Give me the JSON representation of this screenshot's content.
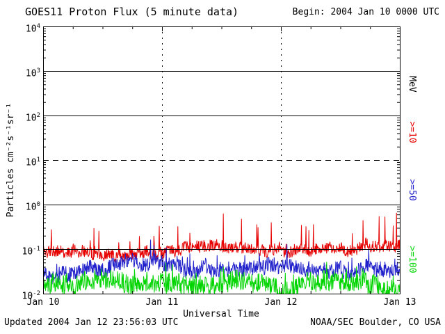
{
  "header": {
    "title": "GOES11 Proton Flux (5 minute data)",
    "begin_label": "Begin: 2004 Jan 10 0000 UTC"
  },
  "footer": {
    "updated": "Updated 2004 Jan 12 23:56:03 UTC",
    "source": "NOAA/SEC Boulder, CO USA"
  },
  "chart_data": {
    "type": "line",
    "title": "GOES11 Proton Flux (5 minute data)",
    "xlabel": "Universal Time",
    "ylabel": "Particles cm⁻²s⁻¹sr⁻¹",
    "x_ticks": [
      "Jan 10",
      "Jan 11",
      "Jan 12",
      "Jan 13"
    ],
    "y_tick_base": "10",
    "y_tick_exponents": [
      "4",
      "3",
      "2",
      "1",
      "0",
      "-1",
      "-2"
    ],
    "ylim_log10": [
      -2,
      4
    ],
    "x_range_days": 3,
    "points_total": 864,
    "cadence_minutes": 5,
    "grid": {
      "h_solid_log10": [
        3,
        2,
        0,
        -1
      ],
      "h_dashed_log10": [
        1
      ],
      "v_dotted_days": [
        1,
        2
      ]
    },
    "legend_position": "right",
    "legend": {
      "units_label": "MeV"
    },
    "axis_color": "#000000",
    "series": [
      {
        "label": ">=10",
        "name": "Protons >=10 MeV",
        "color": "#e60000",
        "log10_mean": -1.02,
        "log10_noise": 0.13,
        "spike_amp": 0.7,
        "spike_prob": 0.05,
        "seed": 11
      },
      {
        "label": ">=50",
        "name": "Protons >=50 MeV",
        "color": "#2222cc",
        "log10_mean": -1.45,
        "log10_noise": 0.17,
        "spike_amp": 0.4,
        "spike_prob": 0.04,
        "seed": 22
      },
      {
        "label": ">=100",
        "name": "Protons >=100 MeV",
        "color": "#00d500",
        "log10_mean": -1.8,
        "log10_noise": 0.22,
        "spike_amp": 0.35,
        "spike_prob": 0.04,
        "seed": 33
      }
    ]
  }
}
